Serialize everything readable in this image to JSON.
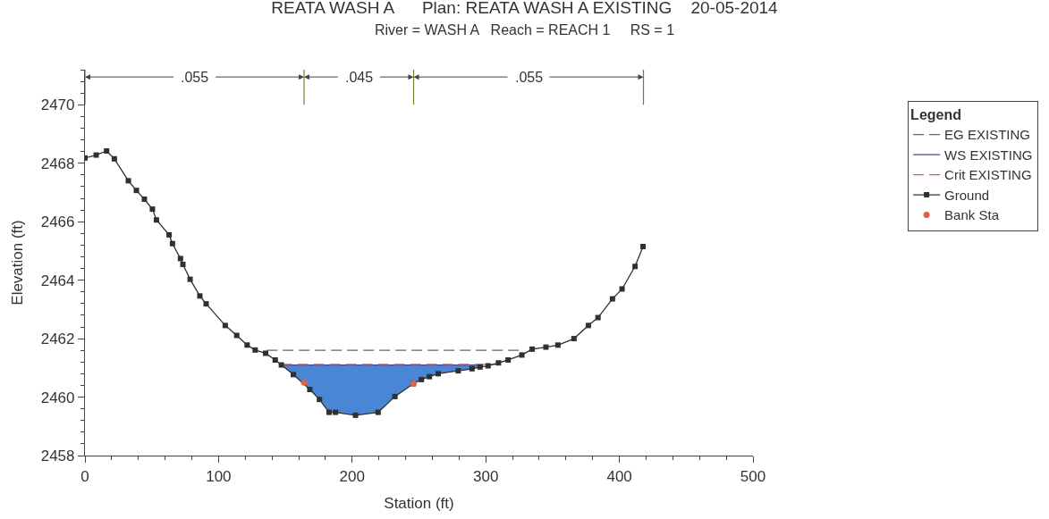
{
  "chart_data": {
    "type": "line",
    "title": "REATA WASH A      Plan: REATA WASH A EXISTING    20-05-2014",
    "subtitle": "River = WASH A   Reach = REACH 1     RS = 1",
    "xlabel": "Station (ft)",
    "ylabel": "Elevation (ft)",
    "legend_title": "Legend",
    "xlim": [
      0,
      500
    ],
    "xticks": [
      0,
      100,
      200,
      300,
      400,
      500
    ],
    "ylim": [
      2458,
      2471.2
    ],
    "yticks": [
      2458,
      2460,
      2462,
      2464,
      2466,
      2468,
      2470
    ],
    "legend": "right",
    "series": [
      {
        "name": "EG EXISTING",
        "type": "line",
        "color": "#5a6e5a",
        "line_style": "dashed",
        "marker": "none",
        "x": [
          136,
          326
        ],
        "values": [
          2461.6,
          2461.6
        ]
      },
      {
        "name": "WS EXISTING",
        "type": "line",
        "color": "#3a4aa8",
        "line_style": "solid",
        "marker": "none",
        "x": [
          147,
          156,
          168.3,
          175.5,
          182.7,
          187.5,
          202.5,
          219.4,
          232,
          245.8,
          251.8,
          257.8,
          264.4,
          279.4,
          289.7,
          298
        ],
        "values": [
          2461.1,
          2461.1,
          2461.1,
          2461.1,
          2461.1,
          2461.1,
          2461.1,
          2461.1,
          2461.1,
          2461.1,
          2461.1,
          2461.1,
          2461.1,
          2461.1,
          2461.1,
          2461.1
        ],
        "lower": [
          2461.1,
          2460.77,
          2460.26,
          2459.92,
          2459.48,
          2459.48,
          2459.38,
          2459.48,
          2460.02,
          2460.46,
          2460.6,
          2460.7,
          2460.8,
          2460.9,
          2460.97,
          2461.05
        ],
        "upper": [
          2461.1,
          2461.1,
          2461.1,
          2461.1,
          2461.1,
          2461.1,
          2461.1,
          2461.1,
          2461.1,
          2461.1,
          2461.1,
          2461.1,
          2461.1,
          2461.1,
          2461.1,
          2461.1
        ]
      },
      {
        "name": "Crit EXISTING",
        "type": "line",
        "color": "#e05a4a",
        "line_style": "dashed",
        "marker": "none",
        "x": [
          147,
          309.5
        ],
        "values": [
          2461.12,
          2461.12
        ]
      },
      {
        "name": "Ground",
        "color": "#303030",
        "line_style": "solid",
        "marker": "square",
        "x": [
          0,
          8.4,
          16.2,
          22,
          32.5,
          38.5,
          44.5,
          50.5,
          53.5,
          63,
          65.5,
          71.5,
          73.3,
          78.7,
          86,
          90.7,
          105,
          113.6,
          121.4,
          127.4,
          135.2,
          142.4,
          147,
          156,
          168.3,
          175.5,
          182.7,
          187.5,
          202.5,
          219.4,
          232,
          245.8,
          251.8,
          257.8,
          264.4,
          279.4,
          289.7,
          295.7,
          301.7,
          309.5,
          316.7,
          327,
          334.7,
          345,
          354,
          366,
          376.8,
          384,
          394.8,
          402,
          411.7,
          417.7
        ],
        "values": [
          2468.18,
          2468.28,
          2468.42,
          2468.15,
          2467.4,
          2467.07,
          2466.77,
          2466.43,
          2466.06,
          2465.55,
          2465.25,
          2464.74,
          2464.54,
          2464.03,
          2463.46,
          2463.19,
          2462.45,
          2462.11,
          2461.78,
          2461.61,
          2461.5,
          2461.27,
          2461.1,
          2460.77,
          2460.26,
          2459.92,
          2459.48,
          2459.48,
          2459.38,
          2459.48,
          2460.02,
          2460.46,
          2460.6,
          2460.7,
          2460.8,
          2460.9,
          2460.97,
          2461.03,
          2461.07,
          2461.17,
          2461.27,
          2461.44,
          2461.64,
          2461.71,
          2461.78,
          2462.0,
          2462.45,
          2462.72,
          2463.36,
          2463.7,
          2464.47,
          2465.15
        ]
      },
      {
        "name": "Bank Sta",
        "type": "scatter",
        "color": "#e0604a",
        "marker": "circle",
        "x": [
          164,
          245.8
        ],
        "values": [
          2460.5,
          2460.46
        ]
      }
    ],
    "ref_lines": [
      {
        "axis": "x",
        "value": 0,
        "label": null,
        "color": "#7a7a30"
      },
      {
        "axis": "x",
        "value": 164,
        "label": null,
        "color": "#7a7a30"
      },
      {
        "axis": "x",
        "value": 246,
        "label": null,
        "color": "#7a7a30"
      },
      {
        "axis": "x",
        "value": 418,
        "label": null,
        "color": "#7a7a30"
      }
    ],
    "annotations": [
      {
        "text": ".055",
        "x": 82,
        "y": 2470.95
      },
      {
        "text": ".045",
        "x": 205,
        "y": 2470.95
      },
      {
        "text": ".055",
        "x": 332,
        "y": 2470.95
      }
    ]
  }
}
